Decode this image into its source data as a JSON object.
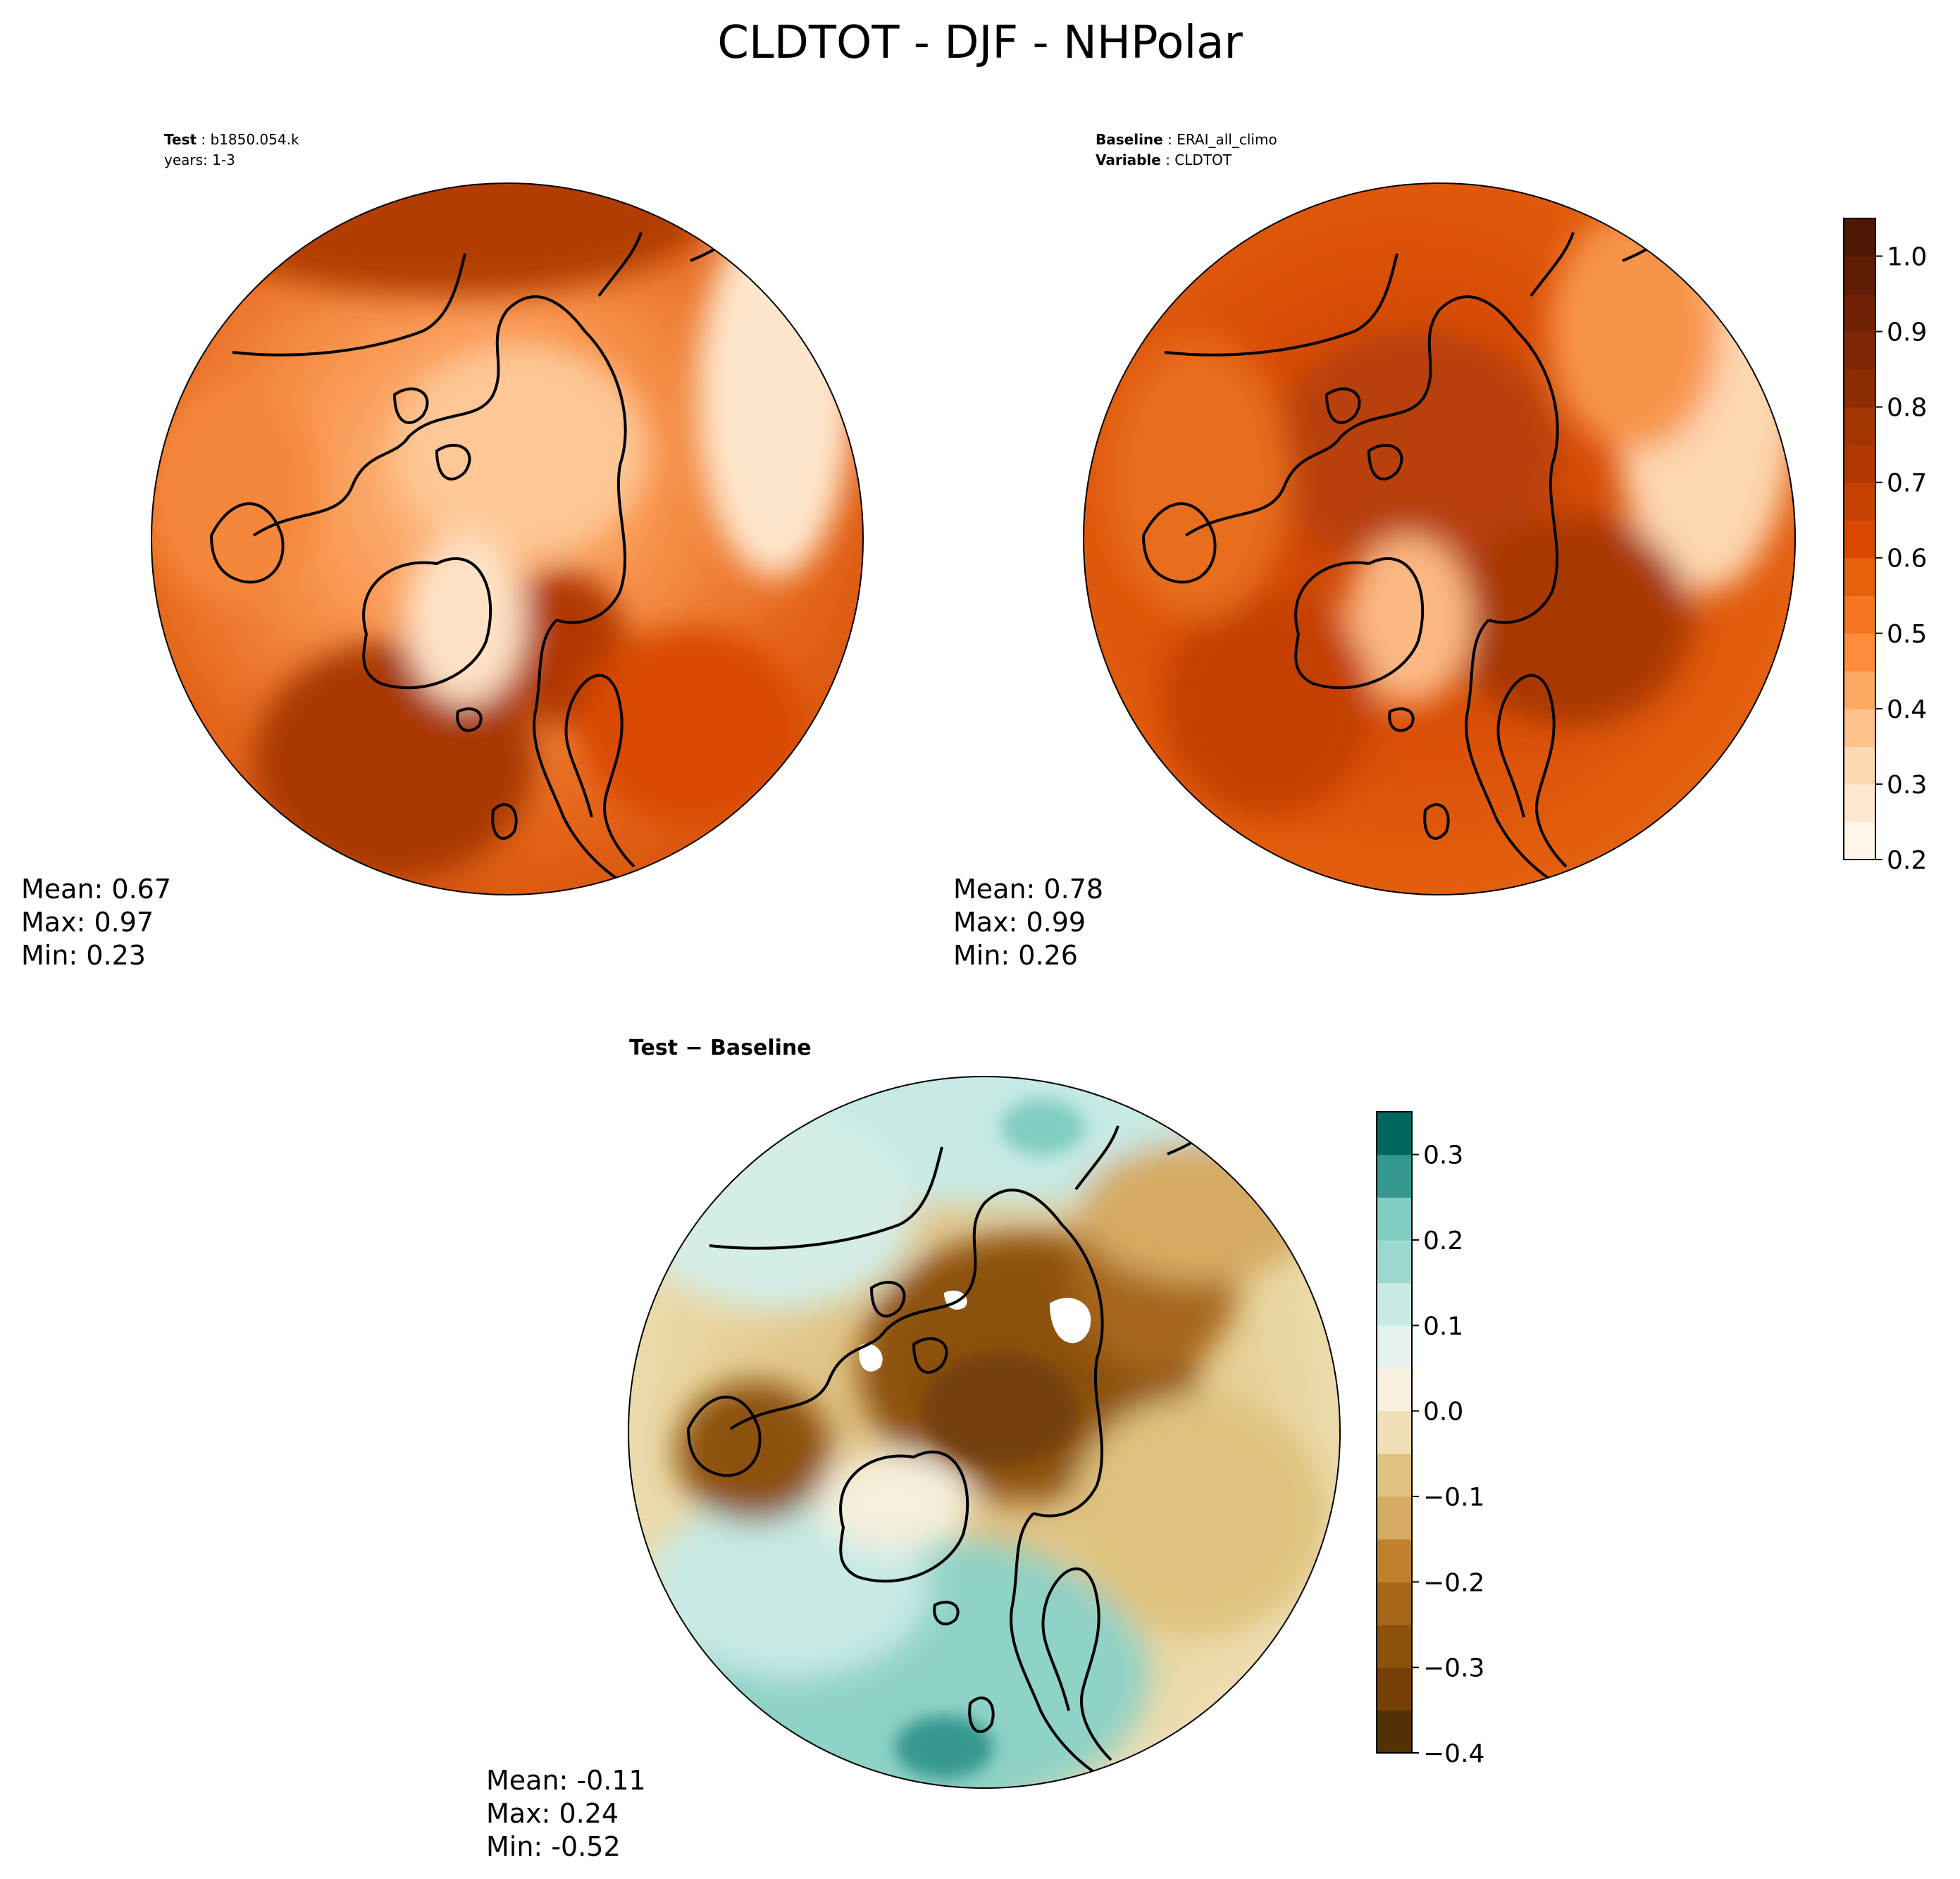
{
  "figure": {
    "title": "CLDTOT - DJF - NHPolar"
  },
  "chart_data": [
    {
      "type": "heatmap",
      "projection": "north-polar-stereographic",
      "panel": "test",
      "header_lines": [
        {
          "bold": "Test",
          "text": "b1850.054.k"
        },
        {
          "bold": "",
          "text": "years: 1-3"
        }
      ],
      "stats": {
        "mean": "Mean:  0.67",
        "max": "Max:  0.97",
        "min": "Min:  0.23"
      }
    },
    {
      "type": "heatmap",
      "projection": "north-polar-stereographic",
      "panel": "baseline",
      "header_lines": [
        {
          "bold": "Baseline",
          "text": "ERAI_all_climo"
        },
        {
          "bold": "Variable",
          "text": "CLDTOT"
        }
      ],
      "stats": {
        "mean": "Mean:  0.78",
        "max": "Max:  0.99",
        "min": "Min:  0.26"
      },
      "colorbar": {
        "range": [
          0.2,
          1.05
        ],
        "ticks": [
          0.2,
          0.3,
          0.4,
          0.5,
          0.6,
          0.7,
          0.8,
          0.9,
          1.0
        ],
        "tick_labels": [
          "0.2",
          "0.3",
          "0.4",
          "0.5",
          "0.6",
          "0.7",
          "0.8",
          "0.9",
          "1.0"
        ],
        "levels": 17,
        "colors": [
          "#fff5eb",
          "#fee8d2",
          "#fdd9b4",
          "#fdc28c",
          "#fda863",
          "#fd8d3c",
          "#f57622",
          "#e5610e",
          "#d94801",
          "#c44103",
          "#b03903",
          "#a33503",
          "#8c2d04",
          "#7f2704",
          "#6f2204",
          "#5e1d04",
          "#4d1804"
        ]
      }
    },
    {
      "type": "heatmap",
      "projection": "north-polar-stereographic",
      "panel": "difference",
      "header_lines": [
        {
          "bold": "Test − Baseline",
          "text": ""
        }
      ],
      "stats": {
        "mean": "Mean: -0.11",
        "max": "Max:  0.24",
        "min": "Min: -0.52"
      },
      "colorbar": {
        "range": [
          -0.4,
          0.35
        ],
        "ticks": [
          -0.4,
          -0.3,
          -0.2,
          -0.1,
          0.0,
          0.1,
          0.2,
          0.3
        ],
        "tick_labels": [
          "−0.4",
          "−0.3",
          "−0.2",
          "−0.1",
          "0.0",
          "0.1",
          "0.2",
          "0.3"
        ],
        "levels": 15,
        "colors": [
          "#543005",
          "#744008",
          "#8c510a",
          "#a6661a",
          "#bf812d",
          "#d5aa62",
          "#dfc27d",
          "#efe0b5",
          "#f6f0dc",
          "#e6f2ef",
          "#c7eae5",
          "#9dd8cd",
          "#80cdc1",
          "#35978f",
          "#01665e"
        ]
      }
    }
  ]
}
